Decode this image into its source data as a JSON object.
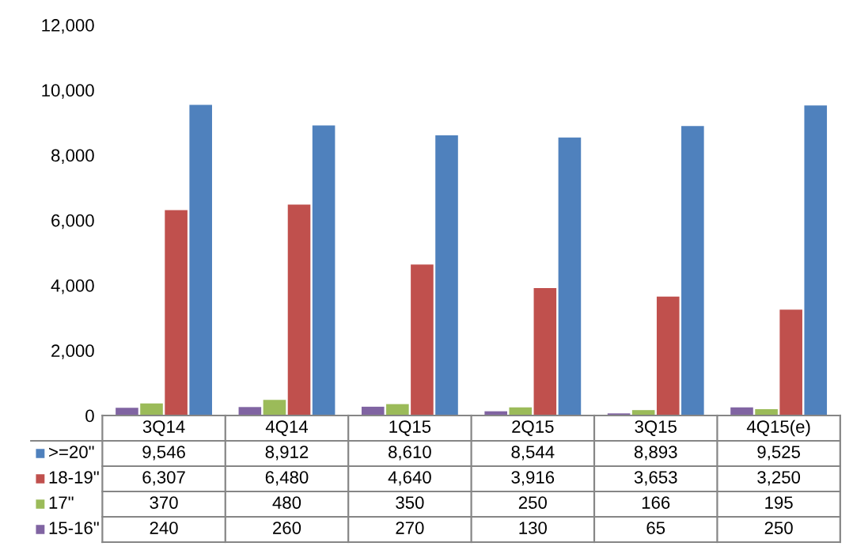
{
  "chart_data": {
    "type": "bar",
    "categories": [
      "3Q14",
      "4Q14",
      "1Q15",
      "2Q15",
      "3Q15",
      "4Q15(e)"
    ],
    "series": [
      {
        "name": ">=20\"",
        "color": "#4f81bd",
        "values": [
          9546,
          8912,
          8610,
          8544,
          8893,
          9525
        ],
        "value_labels": [
          "9,546",
          "8,912",
          "8,610",
          "8,544",
          "8,893",
          "9,525"
        ]
      },
      {
        "name": "18-19\"",
        "color": "#c0504d",
        "values": [
          6307,
          6480,
          4640,
          3916,
          3653,
          3250
        ],
        "value_labels": [
          "6,307",
          "6,480",
          "4,640",
          "3,916",
          "3,653",
          "3,250"
        ]
      },
      {
        "name": "17\"",
        "color": "#9bbb59",
        "values": [
          370,
          480,
          350,
          250,
          166,
          195
        ],
        "value_labels": [
          "370",
          "480",
          "350",
          "250",
          "166",
          "195"
        ]
      },
      {
        "name": "15-16\"",
        "color": "#8064a2",
        "values": [
          240,
          260,
          270,
          130,
          65,
          250
        ],
        "value_labels": [
          "240",
          "260",
          "270",
          "130",
          "65",
          "250"
        ]
      }
    ],
    "ylim": [
      0,
      12000
    ],
    "yticks": [
      0,
      {
        "value": 2000,
        "label": "2,000"
      },
      {
        "value": 4000,
        "label": "4,000"
      },
      {
        "value": 6000,
        "label": "6,000"
      },
      {
        "value": 8000,
        "label": "8,000"
      },
      {
        "value": 10000,
        "label": "10,000"
      },
      {
        "value": 12000,
        "label": "12,000"
      }
    ],
    "grid": false,
    "legend": "bottom"
  }
}
